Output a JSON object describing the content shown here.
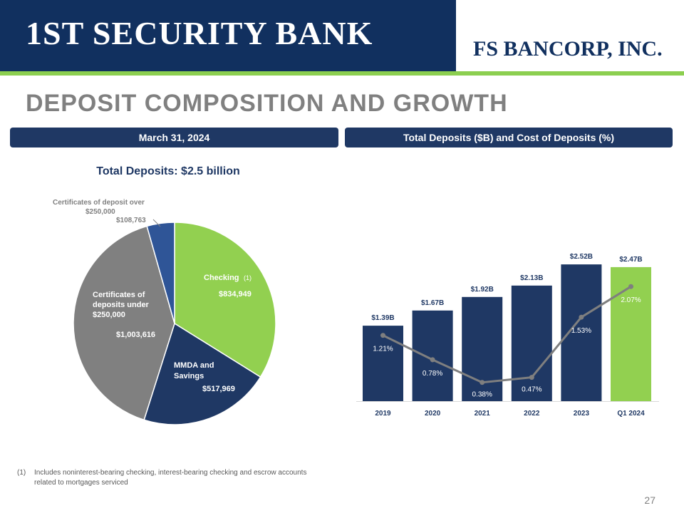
{
  "header": {
    "logo_left": "1ST SECURITY BANK",
    "logo_right": "FS BANCORP, INC."
  },
  "title": "DEPOSIT COMPOSITION AND GROWTH",
  "left_panel_label": "March 31, 2024",
  "right_panel_label": "Total Deposits ($B) and Cost of Deposits (%)",
  "pie_title": "Total Deposits: $2.5 billion",
  "footnote": {
    "number": "(1)",
    "text": "Includes noninterest-bearing checking, interest-bearing checking and escrow accounts related to mortgages serviced"
  },
  "page_number": "27",
  "colors": {
    "navy": "#1f3864",
    "green": "#92d050",
    "gray": "#808080",
    "steel": "#2f5597"
  },
  "chart_data": [
    {
      "type": "pie",
      "title": "Total Deposits: $2.5 billion",
      "slices": [
        {
          "name": "Checking",
          "note": "(1)",
          "value": 834949,
          "value_label": "$834,949",
          "color": "#92d050"
        },
        {
          "name": "MMDA and Savings",
          "value": 517969,
          "value_label": "$517,969",
          "color": "#1f3864"
        },
        {
          "name": "Certificates of deposits under $250,000",
          "value": 1003616,
          "value_label": "$1,003,616",
          "color": "#808080"
        },
        {
          "name": "Certificates of deposit over $250,000",
          "value": 108763,
          "value_label": "$108,763",
          "color": "#2f5597"
        }
      ]
    },
    {
      "type": "bar",
      "title": "Total Deposits ($B) and Cost of Deposits (%)",
      "categories": [
        "2019",
        "2020",
        "2021",
        "2022",
        "2023",
        "Q1 2024"
      ],
      "series": [
        {
          "name": "Total Deposits ($B)",
          "values": [
            1.39,
            1.67,
            1.92,
            2.13,
            2.52,
            2.47
          ],
          "labels": [
            "$1.39B",
            "$1.67B",
            "$1.92B",
            "$2.13B",
            "$2.52B",
            "$2.47B"
          ]
        },
        {
          "name": "Cost of Deposits (%)",
          "type": "line",
          "values": [
            1.21,
            0.78,
            0.38,
            0.47,
            1.53,
            2.07
          ],
          "labels": [
            "1.21%",
            "0.78%",
            "0.38%",
            "0.47%",
            "1.53%",
            "2.07%"
          ]
        }
      ],
      "ylim": [
        0,
        2.6
      ]
    }
  ]
}
